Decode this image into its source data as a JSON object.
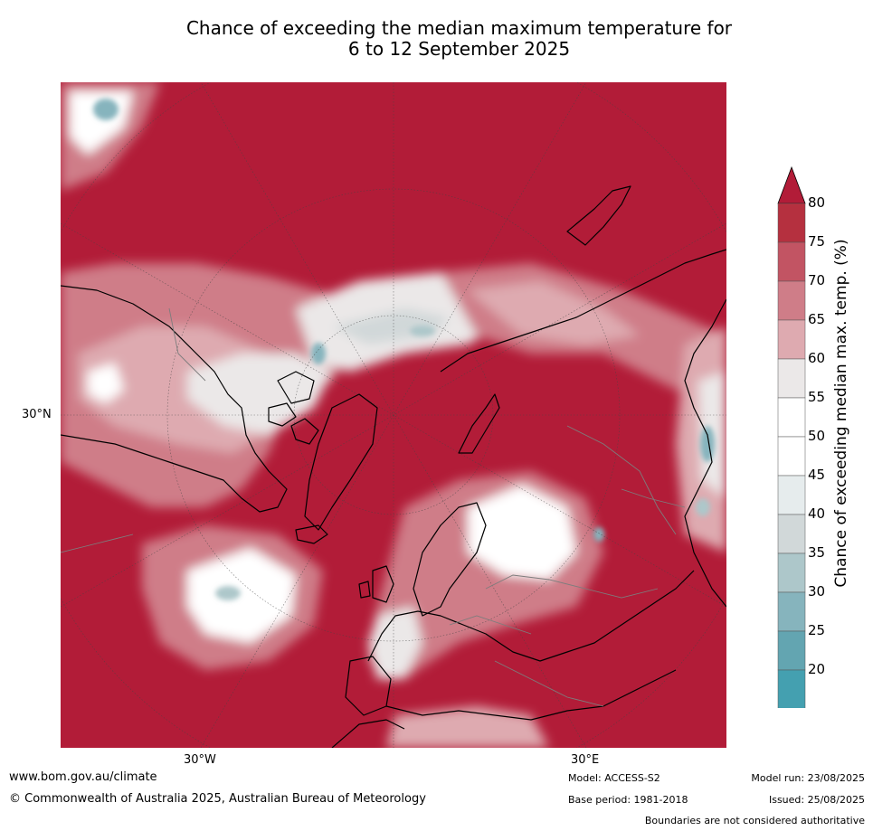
{
  "title_line1": "Chance of exceeding the median maximum temperature for",
  "title_line2": "6 to 12 September 2025",
  "map": {
    "projection": "north-polar-stereographic",
    "ocean_color": "#b21c38",
    "labels": {
      "lat_30n": "30°N",
      "lon_30w": "30°W",
      "lon_30e": "30°E"
    }
  },
  "colorbar": {
    "title": "Chance of exceeding median max. temp. (%)",
    "ticks": [
      "80",
      "75",
      "70",
      "65",
      "60",
      "55",
      "50",
      "45",
      "40",
      "35",
      "30",
      "25",
      "20"
    ],
    "colors": [
      "#b5303f",
      "#c25463",
      "#cf7d88",
      "#deaab0",
      "#ebe8e8",
      "#ffffff",
      "#ffffff",
      "#e6eced",
      "#d1d8d9",
      "#adc7ca",
      "#86b4bd",
      "#63a5b1",
      "#44a0b0"
    ],
    "top_color": "#b21c38",
    "bottom_color": "#44a0b0"
  },
  "footer": {
    "website": "www.bom.gov.au/climate",
    "copyright": "© Commonwealth of Australia 2025, Australian Bureau of Meteorology",
    "model": "Model: ACCESS-S2",
    "base_period": "Base period: 1981-2018",
    "model_run": "Model run: 23/08/2025",
    "issued": "Issued: 25/08/2025",
    "disclaimer": "Boundaries are not considered authoritative"
  }
}
